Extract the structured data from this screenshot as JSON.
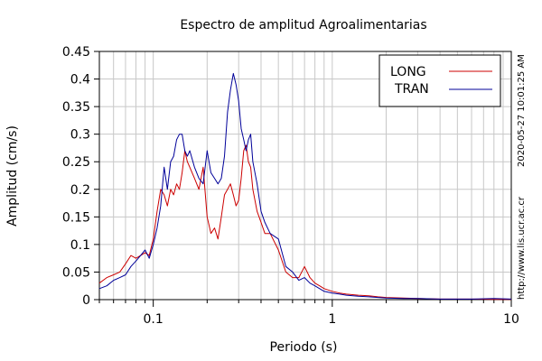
{
  "chart_data": {
    "type": "line",
    "title": "Espectro de amplitud Agroalimentarias",
    "xlabel": "Periodo (s)",
    "ylabel": "Amplitud (cm/s)",
    "xscale": "log",
    "xlim": [
      0.05,
      10
    ],
    "ylim": [
      0,
      0.45
    ],
    "xticks": [
      0.1,
      1,
      10
    ],
    "xtick_labels": [
      "0.1",
      "1",
      "10"
    ],
    "yticks": [
      0,
      0.05,
      0.1,
      0.15,
      0.2,
      0.25,
      0.3,
      0.35,
      0.4,
      0.45
    ],
    "ytick_labels": [
      "0",
      "0.05",
      "0.1",
      "0.15",
      "0.2",
      "0.25",
      "0.3",
      "0.35",
      "0.4",
      "0.45"
    ],
    "grid": true,
    "legend_position": "top-right",
    "series": [
      {
        "name": "LONG",
        "color": "#cc0000",
        "x": [
          0.05,
          0.055,
          0.06,
          0.065,
          0.07,
          0.075,
          0.08,
          0.085,
          0.09,
          0.095,
          0.1,
          0.105,
          0.11,
          0.115,
          0.12,
          0.125,
          0.13,
          0.135,
          0.14,
          0.145,
          0.15,
          0.155,
          0.16,
          0.17,
          0.18,
          0.19,
          0.2,
          0.21,
          0.22,
          0.23,
          0.24,
          0.25,
          0.26,
          0.27,
          0.28,
          0.29,
          0.3,
          0.31,
          0.32,
          0.33,
          0.34,
          0.35,
          0.36,
          0.38,
          0.4,
          0.42,
          0.45,
          0.5,
          0.55,
          0.6,
          0.65,
          0.7,
          0.75,
          0.8,
          0.85,
          0.9,
          1,
          1.1,
          1.2,
          1.4,
          1.6,
          1.8,
          2,
          2.5,
          3,
          4,
          5,
          6,
          8,
          10
        ],
        "y": [
          0.03,
          0.04,
          0.045,
          0.05,
          0.065,
          0.08,
          0.075,
          0.08,
          0.085,
          0.08,
          0.11,
          0.16,
          0.2,
          0.19,
          0.17,
          0.2,
          0.19,
          0.21,
          0.2,
          0.23,
          0.27,
          0.25,
          0.24,
          0.22,
          0.2,
          0.24,
          0.15,
          0.12,
          0.13,
          0.11,
          0.15,
          0.19,
          0.2,
          0.21,
          0.19,
          0.17,
          0.18,
          0.22,
          0.27,
          0.28,
          0.25,
          0.24,
          0.2,
          0.16,
          0.14,
          0.12,
          0.12,
          0.09,
          0.05,
          0.04,
          0.04,
          0.06,
          0.04,
          0.03,
          0.025,
          0.02,
          0.015,
          0.012,
          0.01,
          0.008,
          0.007,
          0.005,
          0.004,
          0.003,
          0.002,
          0.001,
          0.001,
          0.001,
          0.0005,
          0.0005
        ]
      },
      {
        "name": "TRAN",
        "color": "#000099",
        "x": [
          0.05,
          0.055,
          0.06,
          0.065,
          0.07,
          0.075,
          0.08,
          0.085,
          0.09,
          0.095,
          0.1,
          0.105,
          0.11,
          0.115,
          0.12,
          0.125,
          0.13,
          0.135,
          0.14,
          0.145,
          0.15,
          0.155,
          0.16,
          0.17,
          0.18,
          0.19,
          0.2,
          0.21,
          0.22,
          0.23,
          0.24,
          0.25,
          0.26,
          0.27,
          0.28,
          0.29,
          0.3,
          0.31,
          0.32,
          0.33,
          0.34,
          0.35,
          0.36,
          0.38,
          0.4,
          0.42,
          0.45,
          0.5,
          0.55,
          0.6,
          0.65,
          0.7,
          0.75,
          0.8,
          0.85,
          0.9,
          1,
          1.1,
          1.2,
          1.4,
          1.6,
          1.8,
          2,
          2.5,
          3,
          4,
          5,
          6,
          8,
          10
        ],
        "y": [
          0.02,
          0.025,
          0.035,
          0.04,
          0.045,
          0.06,
          0.07,
          0.08,
          0.09,
          0.075,
          0.1,
          0.13,
          0.17,
          0.24,
          0.2,
          0.25,
          0.26,
          0.29,
          0.3,
          0.3,
          0.27,
          0.26,
          0.27,
          0.24,
          0.22,
          0.21,
          0.27,
          0.23,
          0.22,
          0.21,
          0.22,
          0.26,
          0.34,
          0.38,
          0.41,
          0.39,
          0.36,
          0.31,
          0.29,
          0.27,
          0.29,
          0.3,
          0.25,
          0.21,
          0.16,
          0.14,
          0.12,
          0.11,
          0.06,
          0.05,
          0.035,
          0.04,
          0.03,
          0.025,
          0.02,
          0.015,
          0.012,
          0.01,
          0.008,
          0.006,
          0.005,
          0.004,
          0.003,
          0.002,
          0.002,
          0.001,
          0.001,
          0.001,
          0.002,
          0.001
        ]
      }
    ]
  },
  "side_texts": {
    "timestamp": "2020-05-27 10:01:25 AM",
    "website": "http://www.lis.ucr.ac.cr"
  }
}
